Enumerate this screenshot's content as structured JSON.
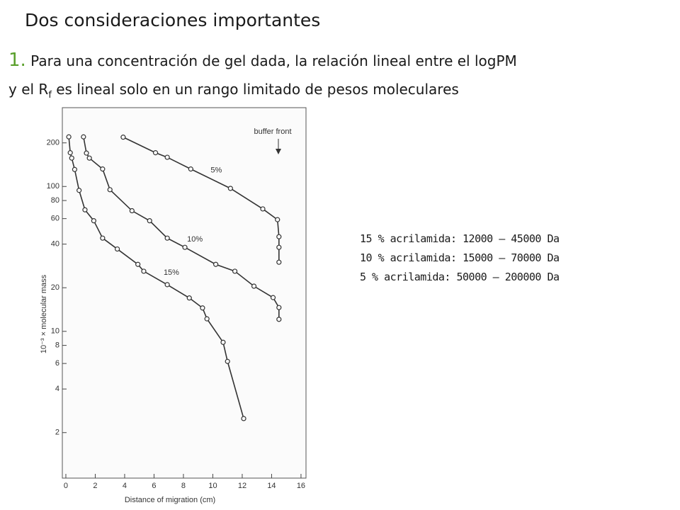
{
  "title": "Dos consideraciones importantes",
  "point": {
    "number": "1.",
    "line1": "Para una concentración de gel dada, la relación lineal entre el logPM",
    "line2a": "y el R",
    "line2sub": "f",
    "line2b": " es lineal solo en un rango limitado de pesos moleculares"
  },
  "ranges": [
    "15 % acrilamida: 12000 – 45000 Da",
    "10 % acrilamida: 15000 – 70000 Da",
    "5 % acrilamida: 50000 – 200000 Da"
  ],
  "chart_data": {
    "type": "line",
    "xlabel": "Distance of migration (cm)",
    "ylabel": "10⁻³ × molecular mass",
    "annotation": "buffer front",
    "y_scale": "log",
    "color": "#333333",
    "xlim": [
      -0.24,
      16.34
    ],
    "ylim": [
      0.97,
      350
    ],
    "xticks": [
      0,
      2,
      4,
      6,
      8,
      10,
      12,
      14,
      16
    ],
    "yticks": [
      2,
      4,
      6,
      8,
      10,
      20,
      40,
      60,
      80,
      100,
      200
    ],
    "series": [
      {
        "name": "5%",
        "x": [
          3.9,
          6.1,
          6.9,
          8.5,
          11.2,
          13.4,
          14.4,
          14.5,
          14.5,
          14.5
        ],
        "values": [
          219,
          171,
          159,
          132,
          97,
          70,
          59,
          45,
          38,
          30
        ]
      },
      {
        "name": "10%",
        "x": [
          1.2,
          1.4,
          1.6,
          2.5,
          3.0,
          4.5,
          5.7,
          6.9,
          8.1,
          10.2,
          11.5,
          12.8,
          14.1,
          14.5,
          14.5
        ],
        "values": [
          220,
          170,
          157,
          132,
          95,
          68,
          58,
          44,
          38,
          29,
          26,
          20.5,
          17.1,
          14.6,
          12.1
        ]
      },
      {
        "name": "15%",
        "x": [
          0.2,
          0.3,
          0.4,
          0.6,
          0.9,
          1.3,
          1.9,
          2.5,
          3.5,
          4.9,
          5.3,
          6.9,
          8.4,
          9.3,
          9.6,
          10.7,
          11.0,
          12.1
        ],
        "values": [
          220,
          171,
          157,
          131,
          94,
          69,
          58,
          44,
          37,
          29,
          26,
          21,
          17,
          14.5,
          12.2,
          8.4,
          6.2,
          2.5
        ]
      }
    ]
  }
}
